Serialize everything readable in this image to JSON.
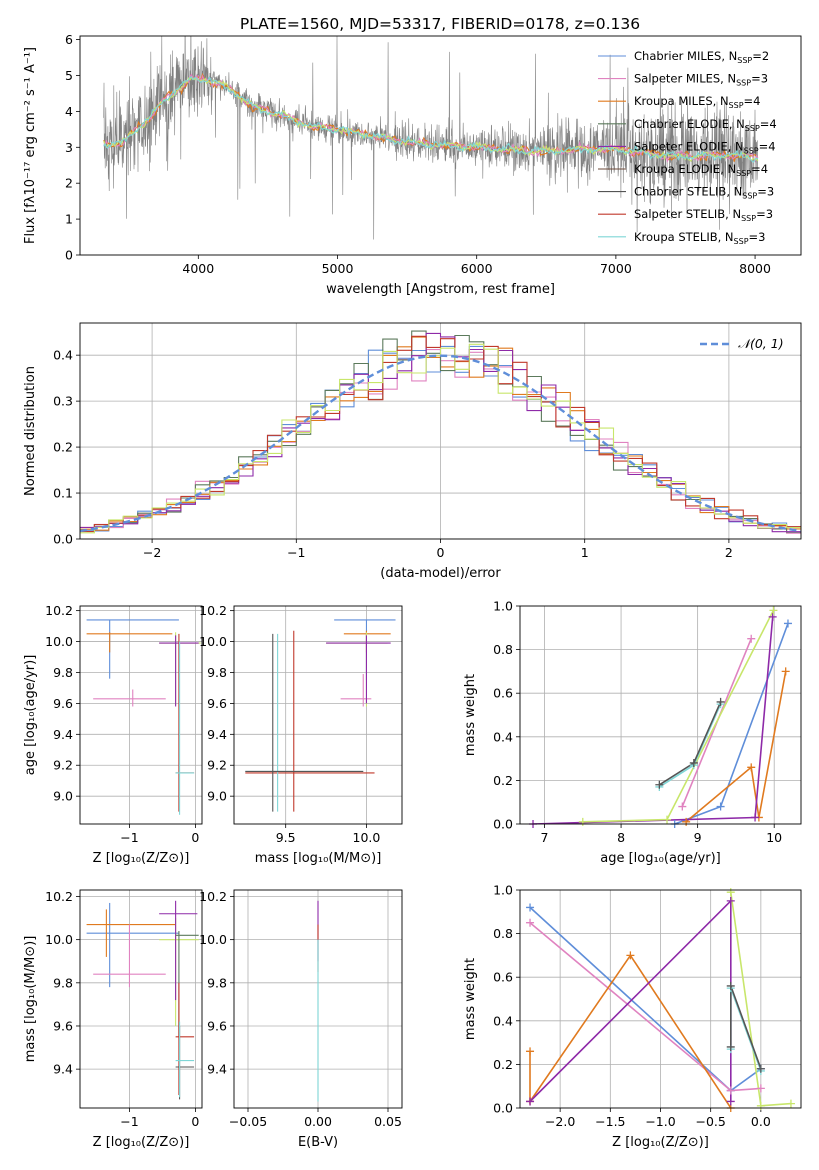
{
  "figure_title": "PLATE=1560, MJD=53317, FIBERID=0178, z=0.136",
  "colors": {
    "series": [
      "#5f8ed9",
      "#e083c0",
      "#e07a1f",
      "#5c7a5c",
      "#8e2aa8",
      "#6b4a3a",
      "#555555",
      "#c0392b",
      "#7fd6d6"
    ],
    "data_grey": "#808080",
    "lime": "#c8e66b",
    "grid": "#b0b0b0",
    "normal": "#5f8ed9"
  },
  "spectrum": {
    "legend": [
      {
        "label": "Chabrier MILES, N",
        "sub": "SSP",
        "eq": "=2"
      },
      {
        "label": "Salpeter MILES, N",
        "sub": "SSP",
        "eq": "=3"
      },
      {
        "label": "Kroupa MILES, N",
        "sub": "SSP",
        "eq": "=4"
      },
      {
        "label": "Chabrier ELODIE, N",
        "sub": "SSP",
        "eq": "=4"
      },
      {
        "label": "Salpeter ELODIE, N",
        "sub": "SSP",
        "eq": "=4"
      },
      {
        "label": "Kroupa ELODIE, N",
        "sub": "SSP",
        "eq": "=4"
      },
      {
        "label": "Chabrier STELIB, N",
        "sub": "SSP",
        "eq": "=3"
      },
      {
        "label": "Salpeter STELIB, N",
        "sub": "SSP",
        "eq": "=3"
      },
      {
        "label": "Kroupa STELIB, N",
        "sub": "SSP",
        "eq": "=3"
      }
    ]
  },
  "residuals": {
    "legend_label": "𝒩(0, 1)"
  },
  "chart_data": [
    {
      "type": "line",
      "id": "spectrum",
      "xlabel": "wavelength [Angstrom, rest frame]",
      "ylabel": "Flux [fλ10⁻¹⁷ erg cm⁻² s⁻¹ A⁻¹]",
      "xlim": [
        3150,
        8330
      ],
      "ylim": [
        0,
        6.1
      ],
      "xticks": [
        4000,
        5000,
        6000,
        7000,
        8000
      ],
      "yticks": [
        0,
        1,
        2,
        3,
        4,
        5,
        6
      ],
      "continuum": {
        "x": [
          3320,
          3450,
          3550,
          3650,
          3750,
          3850,
          3950,
          4050,
          4200,
          4400,
          4600,
          4800,
          5000,
          5200,
          5400,
          5600,
          5800,
          6000,
          6200,
          6400,
          6600,
          6800,
          7000,
          7200,
          7400,
          7600,
          7800,
          8000
        ],
        "y": [
          3.1,
          3.1,
          3.5,
          3.8,
          4.3,
          4.6,
          4.9,
          4.9,
          4.7,
          4.1,
          3.9,
          3.6,
          3.5,
          3.35,
          3.2,
          3.1,
          3.05,
          3.0,
          2.95,
          2.9,
          2.9,
          2.95,
          2.95,
          2.85,
          2.75,
          2.75,
          2.8,
          2.7
        ]
      },
      "grid": false,
      "legend_position": "upper-right"
    },
    {
      "type": "bar",
      "id": "residual-histogram",
      "xlabel": "(data-model)/error",
      "ylabel": "Normed distribution",
      "xlim": [
        -2.5,
        2.5
      ],
      "ylim": [
        0,
        0.47
      ],
      "xticks": [
        -2,
        -1,
        0,
        1,
        2
      ],
      "yticks": [
        0.0,
        0.1,
        0.2,
        0.3,
        0.4
      ],
      "bin_width": 0.1,
      "gaussian": {
        "mean": 0,
        "sigma": 1
      },
      "grid": true,
      "legend_position": "upper-right"
    },
    {
      "type": "scatter",
      "id": "age-vs-metallicity",
      "xlabel": "Z [log₁₀(Z/Z⊙)]",
      "ylabel": "age  [log₁₀(age/yr)]",
      "xlim": [
        -1.75,
        0.1
      ],
      "ylim": [
        8.82,
        10.23
      ],
      "xticks": [
        -1,
        0
      ],
      "yticks": [
        9.0,
        9.2,
        9.4,
        9.6,
        9.8,
        10.0,
        10.2
      ],
      "grid": true,
      "errorbars": [
        {
          "x": -1.3,
          "y": 10.14,
          "x0": -1.65,
          "x1": -0.25,
          "y0": 9.76,
          "y1": 10.14,
          "c": 0
        },
        {
          "x": -1.3,
          "y": 10.05,
          "x0": -1.65,
          "x1": -0.35,
          "y0": 9.93,
          "y1": 10.06,
          "c": 2
        },
        {
          "x": -0.95,
          "y": 9.63,
          "x0": -1.55,
          "x1": -0.45,
          "y0": 9.58,
          "y1": 9.69,
          "c": 1
        },
        {
          "x": -0.3,
          "y": 9.99,
          "x0": -0.55,
          "x1": 0.08,
          "y0": 9.59,
          "y1": 10.06,
          "c": 9
        },
        {
          "x": -0.3,
          "y": 9.99,
          "x0": -0.55,
          "x1": 0.05,
          "y0": 9.58,
          "y1": 10.04,
          "c": 4
        },
        {
          "x": -0.25,
          "y": 9.15,
          "x0": -0.3,
          "x1": -0.02,
          "y0": 8.9,
          "y1": 10.05,
          "c": 7
        },
        {
          "x": -0.24,
          "y": 9.15,
          "x0": -0.3,
          "x1": -0.02,
          "y0": 8.88,
          "y1": 10.0,
          "c": 8
        }
      ]
    },
    {
      "type": "scatter",
      "id": "age-vs-mass",
      "xlabel": "mass [log₁₀(M/M⊙)]",
      "ylabel": "",
      "xlim": [
        9.18,
        10.22
      ],
      "ylim": [
        8.82,
        10.23
      ],
      "xticks": [
        9.5,
        10.0
      ],
      "yticks": [
        9.0,
        9.2,
        9.4,
        9.6,
        9.8,
        10.0,
        10.2
      ],
      "grid": true,
      "errorbars": [
        {
          "x": 10.0,
          "y": 10.14,
          "x0": 9.8,
          "x1": 10.18,
          "y0": 9.75,
          "y1": 10.14,
          "c": 0
        },
        {
          "x": 10.0,
          "y": 10.05,
          "x0": 9.86,
          "x1": 10.15,
          "y0": 9.93,
          "y1": 10.07,
          "c": 2
        },
        {
          "x": 9.98,
          "y": 9.63,
          "x0": 9.84,
          "x1": 10.03,
          "y0": 9.58,
          "y1": 9.79,
          "c": 1
        },
        {
          "x": 10.0,
          "y": 9.99,
          "x0": 9.75,
          "x1": 10.13,
          "y0": 9.58,
          "y1": 10.06,
          "c": 9
        },
        {
          "x": 10.0,
          "y": 9.99,
          "x0": 9.75,
          "x1": 10.15,
          "y0": 9.6,
          "y1": 10.04,
          "c": 4
        },
        {
          "x": 9.55,
          "y": 9.15,
          "x0": 9.25,
          "x1": 10.05,
          "y0": 8.9,
          "y1": 10.07,
          "c": 7
        },
        {
          "x": 9.45,
          "y": 9.16,
          "x0": 9.25,
          "x1": 9.98,
          "y0": 8.9,
          "y1": 10.05,
          "c": 8
        },
        {
          "x": 9.42,
          "y": 9.16,
          "x0": 9.25,
          "x1": 9.98,
          "y0": 8.9,
          "y1": 10.05,
          "c": 6
        }
      ]
    },
    {
      "type": "line",
      "id": "mass-weight-vs-age",
      "xlabel": "age  [log₁₀(age/yr)]",
      "ylabel": "mass weight",
      "xlim": [
        6.68,
        10.35
      ],
      "ylim": [
        0,
        1.0
      ],
      "xticks": [
        7,
        8,
        9,
        10
      ],
      "yticks": [
        0.0,
        0.2,
        0.4,
        0.6,
        0.8,
        1.0
      ],
      "grid": true,
      "series": [
        {
          "c": 0,
          "x": [
            8.7,
            9.3,
            10.18
          ],
          "y": [
            0.0,
            0.08,
            0.92
          ]
        },
        {
          "c": 1,
          "x": [
            8.8,
            9.7
          ],
          "y": [
            0.08,
            0.85
          ]
        },
        {
          "c": 2,
          "x": [
            8.85,
            9.7,
            9.8,
            10.15
          ],
          "y": [
            0.01,
            0.26,
            0.03,
            0.7
          ]
        },
        {
          "c": 4,
          "x": [
            6.85,
            9.75,
            9.98
          ],
          "y": [
            0.0,
            0.03,
            0.95
          ]
        },
        {
          "c": 9,
          "x": [
            7.5,
            8.6,
            9.99
          ],
          "y": [
            0.01,
            0.02,
            0.98
          ]
        },
        {
          "c": 8,
          "x": [
            8.5,
            8.95,
            9.3
          ],
          "y": [
            0.17,
            0.27,
            0.55
          ]
        },
        {
          "c": 6,
          "x": [
            8.5,
            8.95,
            9.3
          ],
          "y": [
            0.18,
            0.28,
            0.56
          ]
        }
      ]
    },
    {
      "type": "scatter",
      "id": "mass-vs-metallicity",
      "xlabel": "Z [log₁₀(Z/Z⊙)]",
      "ylabel": "mass [log₁₀(M/M⊙)]",
      "xlim": [
        -1.75,
        0.1
      ],
      "ylim": [
        9.22,
        10.23
      ],
      "xticks": [
        -1,
        0
      ],
      "yticks": [
        9.4,
        9.6,
        9.8,
        10.0,
        10.2
      ],
      "grid": true,
      "errorbars": [
        {
          "x": -1.3,
          "y": 10.03,
          "x0": -1.65,
          "x1": -0.25,
          "y0": 9.78,
          "y1": 10.17,
          "c": 0
        },
        {
          "x": -1.35,
          "y": 10.07,
          "x0": -1.65,
          "x1": -0.3,
          "y0": 9.92,
          "y1": 10.14,
          "c": 2
        },
        {
          "x": -1.0,
          "y": 9.84,
          "x0": -1.55,
          "x1": -0.45,
          "y0": 9.78,
          "y1": 10.07,
          "c": 1
        },
        {
          "x": -0.3,
          "y": 10.0,
          "x0": -0.55,
          "x1": 0.05,
          "y0": 9.6,
          "y1": 10.1,
          "c": 9
        },
        {
          "x": -0.3,
          "y": 10.12,
          "x0": -0.55,
          "x1": 0.03,
          "y0": 9.72,
          "y1": 10.18,
          "c": 4
        },
        {
          "x": -0.25,
          "y": 10.02,
          "x0": -0.3,
          "x1": 0.05,
          "y0": 9.55,
          "y1": 10.04,
          "c": 3
        },
        {
          "x": -0.25,
          "y": 9.55,
          "x0": -0.3,
          "x1": -0.02,
          "y0": 9.28,
          "y1": 9.8,
          "c": 7
        },
        {
          "x": -0.24,
          "y": 9.41,
          "x0": -0.3,
          "x1": -0.02,
          "y0": 9.26,
          "y1": 9.6,
          "c": 6
        },
        {
          "x": -0.24,
          "y": 9.44,
          "x0": -0.3,
          "x1": -0.02,
          "y0": 9.27,
          "y1": 9.62,
          "c": 8
        }
      ]
    },
    {
      "type": "scatter",
      "id": "mass-vs-extinction",
      "xlabel": "E(B-V)",
      "ylabel": "",
      "xlim": [
        -0.06,
        0.06
      ],
      "ylim": [
        9.22,
        10.23
      ],
      "xticks": [
        -0.05,
        0.0,
        0.05
      ],
      "yticks": [
        9.4,
        9.6,
        9.8,
        10.0,
        10.2
      ],
      "grid": true,
      "errorbars": [
        {
          "x": 0.0,
          "y": 10.05,
          "x0": 0.0,
          "x1": 0.0,
          "y0": 9.9,
          "y1": 10.18,
          "c": 4
        },
        {
          "x": 0.0,
          "y": 10.0,
          "x0": 0.0,
          "x1": 0.0,
          "y0": 9.85,
          "y1": 10.07,
          "c": 7
        },
        {
          "x": 0.0,
          "y": 9.7,
          "x0": 0.0,
          "x1": 0.0,
          "y0": 9.25,
          "y1": 10.0,
          "c": 8
        }
      ]
    },
    {
      "type": "line",
      "id": "mass-weight-vs-metallicity",
      "xlabel": "Z [log₁₀(Z/Z⊙)]",
      "ylabel": "mass weight",
      "xlim": [
        -2.4,
        0.4
      ],
      "ylim": [
        0,
        1.0
      ],
      "xticks": [
        -2.0,
        -1.5,
        -1.0,
        -0.5,
        0.0
      ],
      "yticks": [
        0.0,
        0.2,
        0.4,
        0.6,
        0.8,
        1.0
      ],
      "grid": true,
      "series": [
        {
          "c": 0,
          "x": [
            -2.3,
            -0.3,
            0.0
          ],
          "y": [
            0.92,
            0.08,
            0.18
          ]
        },
        {
          "c": 1,
          "x": [
            -2.3,
            -0.3,
            0.0
          ],
          "y": [
            0.85,
            0.08,
            0.09
          ]
        },
        {
          "c": 2,
          "x": [
            -2.3,
            -2.3,
            -1.3,
            -0.3
          ],
          "y": [
            0.26,
            0.03,
            0.7,
            0.0
          ]
        },
        {
          "c": 4,
          "x": [
            -2.3,
            -0.3,
            -0.3
          ],
          "y": [
            0.03,
            0.95,
            0.03
          ]
        },
        {
          "c": 9,
          "x": [
            -0.3,
            0.0,
            0.3
          ],
          "y": [
            0.99,
            0.01,
            0.02
          ]
        },
        {
          "c": 8,
          "x": [
            -0.3,
            -0.3,
            0.0
          ],
          "y": [
            0.27,
            0.55,
            0.17
          ]
        },
        {
          "c": 6,
          "x": [
            -0.3,
            -0.3,
            0.0
          ],
          "y": [
            0.28,
            0.56,
            0.18
          ]
        }
      ]
    }
  ]
}
